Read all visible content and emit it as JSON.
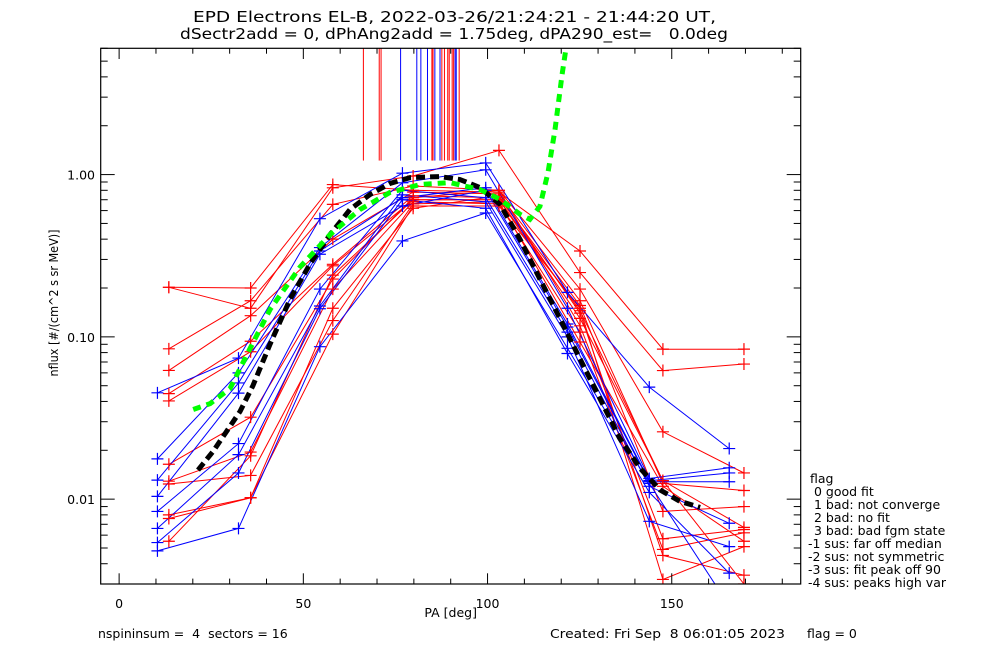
{
  "chart_data": {
    "type": "line",
    "title": "EPD Electrons EL-B, 2022-03-26/21:24:21 - 21:44:20 UT,",
    "subtitle": "dSectr2add = 0, dPhAng2add = 1.75deg, dPA290_est=   0.0deg",
    "xlabel": "PA [deg]",
    "ylabel": "nflux [#/(cm^2 s sr MeV)]",
    "xlim": [
      -5,
      185
    ],
    "ylim": [
      0.003,
      6
    ],
    "yscale": "log",
    "grid": false,
    "x_ticks": [
      0,
      50,
      100,
      150
    ],
    "x_tick_labels": [
      "0",
      "50",
      "100",
      "150"
    ],
    "x_minor_step": 10,
    "y_ticks": [
      1,
      0.1,
      0.01
    ],
    "y_tick_labels": [
      "1.00",
      "0.10",
      "0.01"
    ],
    "series": [
      {
        "color": "#ff0000",
        "marker": "+",
        "x": [
          13.5,
          35.7,
          58.0,
          79.8,
          103.1,
          125.1,
          147.6,
          169.6
        ],
        "y": [
          0.202,
          0.2,
          0.868,
          0.8,
          0.78,
          0.338,
          0.084,
          0.084
        ]
      },
      {
        "color": "#ff0000",
        "marker": "+",
        "x": [
          13.5,
          35.7,
          58.0,
          79.8,
          103.1,
          125.1,
          147.6,
          169.6
        ],
        "y": [
          0.202,
          0.15,
          0.829,
          0.98,
          1.41,
          0.249,
          0.062,
          0.068
        ]
      },
      {
        "color": "#ff0000",
        "marker": "+",
        "x": [
          13.5,
          35.7,
          58.0,
          79.8,
          103.1,
          125.1,
          147.6,
          169.6
        ],
        "y": [
          0.0844,
          0.167,
          0.655,
          0.85,
          0.8,
          0.197,
          0.026,
          0.0145
        ]
      },
      {
        "color": "#ff0000",
        "marker": "+",
        "x": [
          13.5,
          35.7,
          58.0,
          79.8,
          103.1,
          125.1,
          147.6,
          169.6
        ],
        "y": [
          0.0621,
          0.135,
          0.4,
          0.78,
          0.76,
          0.167,
          0.0125,
          0.0113
        ]
      },
      {
        "color": "#ff0000",
        "marker": "+",
        "x": [
          13.5,
          35.7,
          58.0,
          79.8,
          103.1,
          125.1,
          147.6,
          169.6
        ],
        "y": [
          0.0447,
          0.094,
          0.28,
          0.74,
          0.72,
          0.156,
          0.0084,
          0.009
        ]
      },
      {
        "color": "#ff0000",
        "marker": "+",
        "x": [
          13.5,
          35.7,
          58.0,
          79.8,
          103.1,
          125.1,
          147.6,
          169.6
        ],
        "y": [
          0.0403,
          0.081,
          0.274,
          0.7,
          0.7,
          0.145,
          0.013,
          0.0067
        ]
      },
      {
        "color": "#ff0000",
        "marker": "+",
        "x": [
          13.5,
          35.7,
          58.0,
          79.8,
          103.1,
          125.1,
          147.6,
          169.6
        ],
        "y": [
          0.0164,
          0.032,
          0.227,
          0.72,
          0.8,
          0.117,
          0.0057,
          0.0065
        ]
      },
      {
        "color": "#ff0000",
        "marker": "+",
        "x": [
          13.5,
          35.7,
          58.0,
          79.8,
          103.1,
          125.1,
          147.6,
          169.6
        ],
        "y": [
          0.0129,
          0.0195,
          0.197,
          0.68,
          0.66,
          0.107,
          0.0049,
          0.0062
        ]
      },
      {
        "color": "#ff0000",
        "marker": "+",
        "x": [
          13.5,
          35.7,
          58.0,
          79.8,
          103.1,
          125.1,
          147.6,
          169.6
        ],
        "y": [
          0.0124,
          0.014,
          0.126,
          0.66,
          0.68,
          0.093,
          0.012,
          0.0055
        ]
      },
      {
        "color": "#ff0000",
        "marker": "+",
        "x": [
          13.5,
          35.7,
          58.0,
          79.8,
          103.1,
          125.1,
          147.6,
          169.6
        ],
        "y": [
          0.008,
          0.0102,
          0.104,
          0.64,
          0.64,
          0.15,
          0.0032,
          0.0051
        ]
      },
      {
        "color": "#ff0000",
        "marker": "+",
        "x": [
          13.5,
          35.7,
          58.0,
          79.8,
          103.1,
          125.1,
          147.6,
          169.6
        ],
        "y": [
          0.0076,
          0.0102,
          0.15,
          0.62,
          0.74,
          0.14,
          0.0045,
          0.0034
        ]
      },
      {
        "color": "#ff0000",
        "marker": "+",
        "x": [
          13.5,
          35.7,
          58.0,
          79.8,
          103.1,
          125.1,
          147.6,
          169.6
        ],
        "y": [
          0.0055,
          0.0185,
          0.24,
          0.7,
          0.7,
          0.13,
          0.013,
          0.003
        ]
      },
      {
        "color": "#0000ff",
        "marker": "+",
        "x": [
          10.4,
          32.4,
          54.5,
          76.9,
          99.5,
          121.7,
          143.9,
          165.6
        ],
        "y": [
          0.0452,
          0.074,
          0.535,
          1.02,
          1.18,
          0.188,
          0.049,
          0.0205
        ]
      },
      {
        "color": "#0000ff",
        "marker": "+",
        "x": [
          10.4,
          32.4,
          54.5,
          76.9,
          99.5,
          121.7,
          143.9,
          165.6
        ],
        "y": [
          0.0177,
          0.06,
          0.355,
          0.89,
          1.07,
          0.15,
          0.0134,
          0.0156
        ]
      },
      {
        "color": "#0000ff",
        "marker": "+",
        "x": [
          10.4,
          32.4,
          54.5,
          76.9,
          99.5,
          121.7,
          143.9,
          165.6
        ],
        "y": [
          0.0131,
          0.052,
          0.338,
          0.72,
          0.83,
          0.12,
          0.013,
          0.0145
        ]
      },
      {
        "color": "#0000ff",
        "marker": "+",
        "x": [
          10.4,
          32.4,
          54.5,
          76.9,
          99.5,
          121.7,
          143.9,
          165.6
        ],
        "y": [
          0.0104,
          0.045,
          0.323,
          0.64,
          0.8,
          0.115,
          0.0128,
          0.0128
        ]
      },
      {
        "color": "#0000ff",
        "marker": "+",
        "x": [
          10.4,
          32.4,
          54.5,
          76.9,
          99.5,
          121.7,
          143.9,
          165.6
        ],
        "y": [
          0.0084,
          0.022,
          0.197,
          0.8,
          0.72,
          0.107,
          0.012,
          0.0071
        ]
      },
      {
        "color": "#0000ff",
        "marker": "+",
        "x": [
          10.4,
          32.4,
          54.5,
          76.9,
          99.5,
          121.7,
          143.9,
          165.6
        ],
        "y": [
          0.0066,
          0.0188,
          0.155,
          0.75,
          0.68,
          0.1,
          0.0073,
          0.0051
        ]
      },
      {
        "color": "#0000ff",
        "marker": "+",
        "x": [
          10.4,
          32.4,
          54.5,
          76.9,
          99.5,
          121.7,
          143.9,
          165.6
        ],
        "y": [
          0.0054,
          0.0145,
          0.149,
          0.7,
          0.62,
          0.079,
          0.011,
          0.0035
        ]
      },
      {
        "color": "#0000ff",
        "marker": "+",
        "x": [
          10.4,
          32.4,
          54.5,
          76.9,
          99.5,
          121.7,
          143.9,
          165.6
        ],
        "y": [
          0.0048,
          0.0066,
          0.087,
          0.39,
          0.58,
          0.085,
          0.0125,
          0.0022
        ]
      }
    ],
    "fit_curves": [
      {
        "color": "#000000",
        "style": "dashed",
        "x": [
          21.4,
          25.5,
          32.8,
          36.3,
          41.0,
          46.4,
          51.8,
          57.3,
          62.7,
          68.1,
          73.5,
          79.0,
          87.1,
          92.5,
          97.9,
          103.4,
          108.8,
          114.2,
          119.7,
          125.1,
          130.5,
          135.9,
          141.4,
          146.8,
          152.2,
          157.7
        ],
        "y": [
          0.0151,
          0.0197,
          0.0347,
          0.05,
          0.0906,
          0.171,
          0.281,
          0.428,
          0.61,
          0.754,
          0.881,
          0.958,
          0.972,
          0.932,
          0.832,
          0.655,
          0.399,
          0.227,
          0.129,
          0.0733,
          0.0417,
          0.0237,
          0.0155,
          0.0114,
          0.0097,
          0.0089
        ]
      },
      {
        "color": "#00ff00",
        "style": "dashed",
        "x": [
          20.1,
          24.7,
          30.1,
          35.5,
          41.0,
          49.1,
          57.3,
          65.4,
          73.5,
          81.7,
          89.8,
          97.9,
          103.4,
          108.8,
          111.5,
          114.2,
          116.4,
          118.3,
          120.2,
          121.3
        ],
        "y": [
          0.0357,
          0.0388,
          0.048,
          0.0844,
          0.148,
          0.269,
          0.428,
          0.61,
          0.776,
          0.869,
          0.893,
          0.809,
          0.703,
          0.569,
          0.53,
          0.637,
          1.03,
          1.89,
          4.1,
          6.0
        ]
      }
    ],
    "peak_lines": {
      "y_range": [
        1.22,
        6
      ],
      "lines": [
        {
          "x": 66.3,
          "color": "#ff0000"
        },
        {
          "x": 70.6,
          "color": "#ff0000"
        },
        {
          "x": 71.1,
          "color": "#ff0000"
        },
        {
          "x": 76.4,
          "color": "#0000ff"
        },
        {
          "x": 80.8,
          "color": "#0000ff"
        },
        {
          "x": 81.9,
          "color": "#0000ff"
        },
        {
          "x": 83.7,
          "color": "#0000ff"
        },
        {
          "x": 84.9,
          "color": "#ff0000"
        },
        {
          "x": 85.2,
          "color": "#ff0000"
        },
        {
          "x": 85.7,
          "color": "#0000ff"
        },
        {
          "x": 87.1,
          "color": "#0000ff"
        },
        {
          "x": 87.6,
          "color": "#ff0000"
        },
        {
          "x": 88.3,
          "color": "#ff0000"
        },
        {
          "x": 89.2,
          "color": "#ff0000"
        },
        {
          "x": 89.6,
          "color": "#ff0000"
        },
        {
          "x": 90.4,
          "color": "#ff0000"
        },
        {
          "x": 90.8,
          "color": "#ff0000"
        },
        {
          "x": 91.2,
          "color": "#0000ff"
        },
        {
          "x": 91.5,
          "color": "#0000ff"
        },
        {
          "x": 92.3,
          "color": "#ff0000"
        }
      ]
    }
  },
  "legend": {
    "title": "flag",
    "items": [
      " 0 good fit",
      " 1 bad: not converge",
      " 2 bad: no fit",
      " 3 bad: bad fgm state",
      "-1 sus: far off median",
      "-2 sus: not symmetric",
      "-3 sus: fit peak off 90",
      "-4 sus: peaks high var"
    ]
  },
  "footer": {
    "info": "nspininsum =  4  sectors = 16",
    "created": "Created: Fri Sep  8 06:01:05 2023",
    "flag": "flag = 0"
  }
}
